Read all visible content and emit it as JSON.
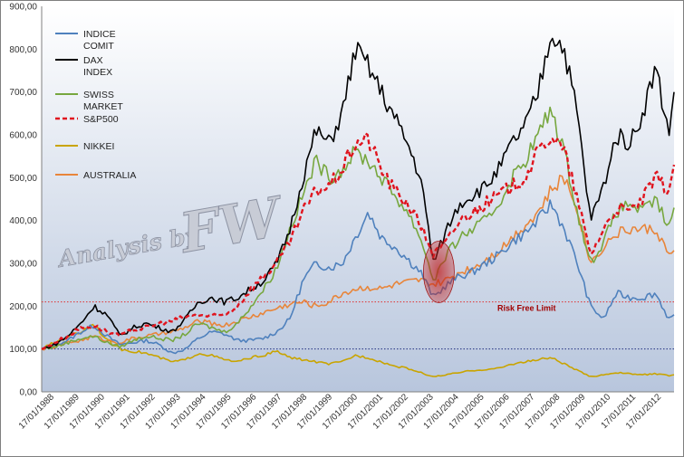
{
  "chart_data": {
    "type": "line",
    "title": "",
    "xlabel": "",
    "ylabel": "",
    "ylim": [
      0,
      900
    ],
    "yticks": [
      "0,00",
      "100,00",
      "200,00",
      "300,00",
      "400,00",
      "500,00",
      "600,00",
      "700,00",
      "800,00",
      "900,00"
    ],
    "x_tick_labels": [
      "17/01/1988",
      "17/01/1989",
      "17/01/1990",
      "17/01/1991",
      "17/01/1992",
      "17/01/1993",
      "17/01/1994",
      "17/01/1995",
      "17/01/1996",
      "17/01/1997",
      "17/01/1998",
      "17/01/1999",
      "17/01/2000",
      "17/01/2001",
      "17/01/2002",
      "17/01/2003",
      "17/01/2004",
      "17/01/2005",
      "17/01/2006",
      "17/01/2007",
      "17/01/2008",
      "17/01/2009",
      "17/01/2010",
      "17/01/2011",
      "17/01/2012"
    ],
    "x_years": [
      1988,
      1988.5,
      1989,
      1989.5,
      1990,
      1990.5,
      1991,
      1991.5,
      1992,
      1992.5,
      1993,
      1993.5,
      1994,
      1994.5,
      1995,
      1995.5,
      1996,
      1996.5,
      1997,
      1997.5,
      1998,
      1998.5,
      1999,
      1999.5,
      2000,
      2000.5,
      2001,
      2001.5,
      2002,
      2002.5,
      2003,
      2003.5,
      2004,
      2004.5,
      2005,
      2005.5,
      2006,
      2006.5,
      2007,
      2007.5,
      2008,
      2008.5,
      2009,
      2009.5,
      2010,
      2010.5,
      2011,
      2011.5,
      2012,
      2012.2
    ],
    "series": [
      {
        "name": "INDICE COMIT",
        "color": "#4f81bd",
        "dash": "solid",
        "values": [
          100,
          110,
          120,
          140,
          155,
          130,
          110,
          115,
          120,
          110,
          90,
          100,
          125,
          140,
          135,
          120,
          120,
          125,
          140,
          170,
          260,
          300,
          290,
          300,
          360,
          420,
          360,
          340,
          310,
          280,
          220,
          250,
          270,
          280,
          300,
          320,
          350,
          370,
          400,
          440,
          380,
          300,
          200,
          170,
          230,
          220,
          220,
          230,
          170,
          180
        ]
      },
      {
        "name": "DAX INDEX",
        "color": "#000000",
        "dash": "solid",
        "values": [
          100,
          110,
          130,
          160,
          200,
          180,
          130,
          150,
          160,
          150,
          140,
          170,
          210,
          220,
          210,
          220,
          240,
          260,
          300,
          380,
          500,
          610,
          580,
          650,
          800,
          760,
          700,
          640,
          580,
          500,
          300,
          380,
          440,
          460,
          480,
          520,
          580,
          620,
          700,
          840,
          800,
          650,
          400,
          480,
          600,
          580,
          650,
          760,
          600,
          700
        ]
      },
      {
        "name": "SWISS MARKET",
        "color": "#77a73f",
        "dash": "solid",
        "values": [
          100,
          105,
          115,
          125,
          130,
          115,
          105,
          120,
          130,
          125,
          120,
          135,
          160,
          150,
          140,
          160,
          200,
          240,
          290,
          380,
          460,
          540,
          500,
          520,
          560,
          540,
          500,
          460,
          420,
          360,
          260,
          320,
          360,
          380,
          400,
          440,
          500,
          540,
          600,
          660,
          560,
          420,
          300,
          350,
          420,
          440,
          420,
          450,
          380,
          430
        ]
      },
      {
        "name": "S&P500",
        "color": "#e0141e",
        "dash": "dashed",
        "values": [
          100,
          115,
          130,
          150,
          155,
          140,
          130,
          145,
          150,
          160,
          165,
          175,
          180,
          175,
          180,
          200,
          240,
          270,
          300,
          350,
          420,
          470,
          480,
          520,
          580,
          590,
          520,
          470,
          440,
          390,
          320,
          350,
          400,
          420,
          440,
          460,
          480,
          500,
          560,
          600,
          560,
          450,
          320,
          380,
          430,
          420,
          450,
          500,
          470,
          530
        ]
      },
      {
        "name": "NIKKEI",
        "color": "#c9a400",
        "dash": "solid",
        "values": [
          100,
          115,
          130,
          140,
          160,
          120,
          100,
          95,
          90,
          80,
          70,
          75,
          90,
          85,
          75,
          70,
          80,
          85,
          95,
          80,
          75,
          70,
          65,
          70,
          85,
          80,
          70,
          60,
          55,
          45,
          35,
          40,
          45,
          50,
          52,
          55,
          65,
          70,
          75,
          80,
          65,
          50,
          35,
          40,
          45,
          42,
          40,
          42,
          38,
          40
        ]
      },
      {
        "name": "AUSTRALIA",
        "color": "#e8853a",
        "dash": "solid",
        "values": [
          100,
          105,
          115,
          120,
          130,
          120,
          115,
          125,
          130,
          135,
          140,
          150,
          165,
          160,
          155,
          165,
          175,
          185,
          195,
          205,
          210,
          200,
          210,
          230,
          240,
          245,
          240,
          250,
          255,
          260,
          250,
          260,
          280,
          290,
          310,
          330,
          360,
          390,
          420,
          470,
          500,
          430,
          300,
          340,
          370,
          380,
          380,
          380,
          320,
          330
        ]
      }
    ],
    "legend_position": "top-left",
    "grid": false,
    "reference_lines": [
      {
        "y": 210,
        "color": "#e03030",
        "label": "Risk Free Limit"
      },
      {
        "y": 100,
        "color": "#203080",
        "label": ""
      }
    ],
    "highlight": {
      "x": 2003.2,
      "y": 280
    }
  },
  "watermark": {
    "line1": "Analysis by",
    "line2": "FW"
  },
  "colors": {
    "plot_top": "#ffffff",
    "plot_bottom": "#b8c6dd",
    "frame": "#7f7f7f"
  }
}
